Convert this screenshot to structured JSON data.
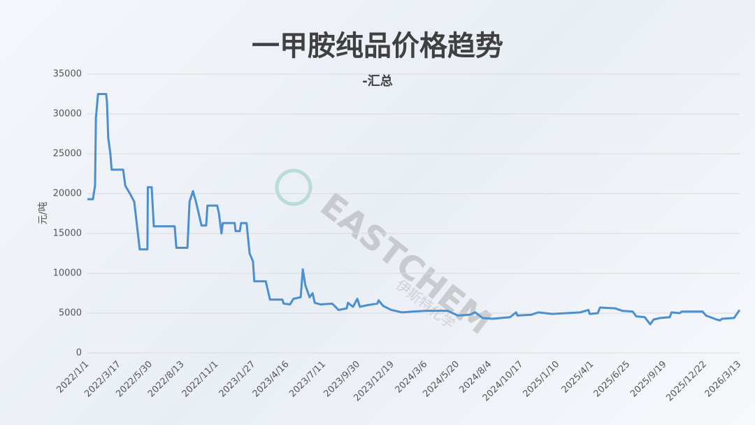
{
  "chart_data": {
    "type": "line",
    "title": "一甲胺纯品价格趋势",
    "subtitle": "-汇总",
    "y_label": "元/吨",
    "watermark": "EASTCHEM",
    "watermark_sub": "伊斯特化学",
    "x": [
      "2022/1/1",
      "2022/1/14",
      "2022/1/19",
      "2022/1/21",
      "2022/1/26",
      "2022/2/14",
      "2022/2/16",
      "2022/2/19",
      "2022/2/24",
      "2022/2/27",
      "2022/3/26",
      "2022/3/31",
      "2022/4/11",
      "2022/4/21",
      "2022/5/4",
      "2022/5/22",
      "2022/5/23",
      "2022/6/1",
      "2022/6/6",
      "2022/7/25",
      "2022/7/29",
      "2022/8/24",
      "2022/8/29",
      "2022/9/6",
      "2022/9/13",
      "2022/9/26",
      "2022/10/7",
      "2022/10/10",
      "2022/11/2",
      "2022/11/6",
      "2022/11/12",
      "2022/11/15",
      "2022/12/13",
      "2022/12/15",
      "2022/12/25",
      "2022/12/28",
      "2023/1/10",
      "2023/1/17",
      "2023/1/25",
      "2023/1/28",
      "2023/2/24",
      "2023/3/6",
      "2023/4/4",
      "2023/4/7",
      "2023/4/22",
      "2023/4/30",
      "2023/5/17",
      "2023/5/22",
      "2023/5/28",
      "2023/6/7",
      "2023/6/14",
      "2023/6/19",
      "2023/7/2",
      "2023/7/30",
      "2023/8/14",
      "2023/9/2",
      "2023/9/5",
      "2023/9/17",
      "2023/9/27",
      "2023/10/3",
      "2023/10/20",
      "2023/11/13",
      "2023/11/16",
      "2023/11/27",
      "2023/12/16",
      "2024/1/10",
      "2024/2/4",
      "2024/3/7",
      "2024/4/26",
      "2024/5/20",
      "2024/6/17",
      "2024/6/30",
      "2024/7/17",
      "2024/8/10",
      "2024/9/20",
      "2024/10/4",
      "2024/10/7",
      "2024/11/9",
      "2024/11/25",
      "2024/12/28",
      "2025/3/4",
      "2025/3/23",
      "2025/3/26",
      "2025/4/14",
      "2025/4/19",
      "2025/5/25",
      "2025/6/10",
      "2025/7/5",
      "2025/7/13",
      "2025/8/2",
      "2025/8/15",
      "2025/8/23",
      "2025/9/8",
      "2025/9/30",
      "2025/10/4",
      "2025/10/23",
      "2025/10/28",
      "2025/12/16",
      "2025/12/24",
      "2026/1/18",
      "2026/1/26",
      "2026/1/31",
      "2026/2/28",
      "2026/3/13"
    ],
    "series": [
      {
        "name": "一甲胺纯品",
        "color": "#4a8fd0",
        "values": [
          19300,
          19300,
          21000,
          29500,
          32500,
          32500,
          31500,
          27000,
          25000,
          23000,
          23000,
          21000,
          20000,
          19000,
          13000,
          13000,
          20800,
          20800,
          15900,
          15900,
          13200,
          13200,
          19000,
          20300,
          19000,
          16000,
          16000,
          18500,
          18500,
          17500,
          15000,
          16300,
          16300,
          15300,
          15300,
          16300,
          16300,
          12500,
          11500,
          9000,
          9000,
          6700,
          6700,
          6200,
          6100,
          6800,
          7000,
          10500,
          8500,
          7000,
          7500,
          6300,
          6100,
          6200,
          5400,
          5600,
          6300,
          5800,
          6800,
          5800,
          6000,
          6200,
          6600,
          5900,
          5400,
          5100,
          5200,
          5300,
          5300,
          4700,
          4800,
          5100,
          4400,
          4300,
          4500,
          5100,
          4700,
          4800,
          5100,
          4900,
          5100,
          5400,
          4900,
          5000,
          5700,
          5600,
          5300,
          5200,
          4600,
          4500,
          3600,
          4200,
          4400,
          4500,
          5100,
          5000,
          5200,
          5200,
          4700,
          4200,
          4100,
          4300,
          4400,
          5400
        ]
      }
    ],
    "xlim": [
      "2022/1/1",
      "2026/3/13"
    ],
    "xticks": [
      "2022/1/1",
      "2022/3/17",
      "2022/5/30",
      "2022/8/13",
      "2022/11/1",
      "2023/1/27",
      "2023/4/16",
      "2023/7/11",
      "2023/9/30",
      "2023/12/19",
      "2024/3/6",
      "2024/5/20",
      "2024/8/4",
      "2024/10/17",
      "2025/1/10",
      "2025/4/1",
      "2025/6/25",
      "2025/9/19",
      "2025/12/22",
      "2026/3/13"
    ],
    "ylim": [
      0,
      35000
    ],
    "yticks": [
      0,
      5000,
      10000,
      15000,
      20000,
      25000,
      30000,
      35000
    ],
    "grid": true
  }
}
